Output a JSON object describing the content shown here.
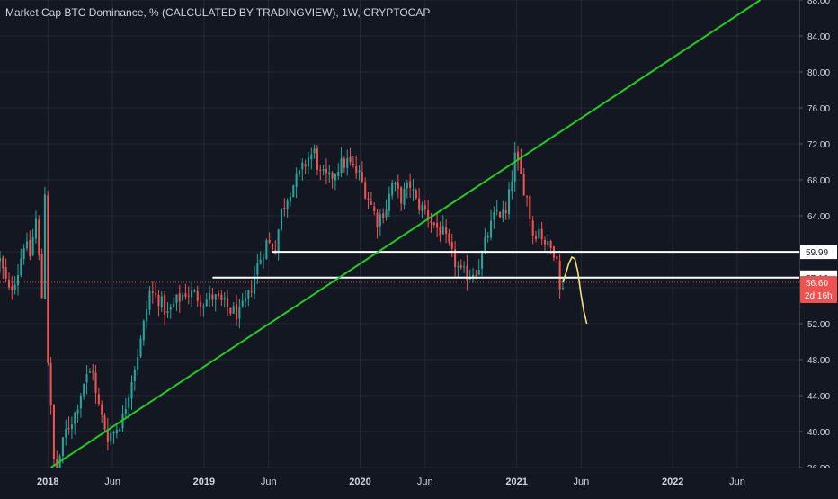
{
  "chart_data": {
    "type": "candlestick",
    "title": "Market Cap BTC Dominance, % (CALCULATED BY TRADINGVIEW), 1W, CRYPTOCAP",
    "xlabel": "",
    "ylabel": "",
    "x_range": [
      "2017-09-11",
      "2022-10-24"
    ],
    "ylim": [
      36,
      88
    ],
    "grid": true,
    "y_ticks": [
      "36.00",
      "40.00",
      "44.00",
      "48.00",
      "52.00",
      "56.00",
      "60.00",
      "64.00",
      "68.00",
      "72.00",
      "76.00",
      "80.00",
      "84.00",
      "88.00"
    ],
    "y_tick_values": [
      36,
      40,
      44,
      48,
      52,
      56,
      60,
      64,
      68,
      72,
      76,
      80,
      84,
      88
    ],
    "x_ticks": [
      {
        "label": "2018",
        "date": "2018-01-01"
      },
      {
        "label": "Jun",
        "date": "2018-06-01"
      },
      {
        "label": "2019",
        "date": "2019-01-01"
      },
      {
        "label": "Jun",
        "date": "2019-06-01"
      },
      {
        "label": "2020",
        "date": "2020-01-01"
      },
      {
        "label": "Jun",
        "date": "2020-06-01"
      },
      {
        "label": "2021",
        "date": "2021-01-01"
      },
      {
        "label": "Jun",
        "date": "2021-06-01"
      },
      {
        "label": "2022",
        "date": "2022-01-01"
      },
      {
        "label": "Jun",
        "date": "2022-06-01"
      }
    ],
    "price_path": [
      [
        "2017-09-11",
        59.0
      ],
      [
        "2017-10-02",
        55.5
      ],
      [
        "2017-10-23",
        57.8
      ],
      [
        "2017-11-06",
        61.0
      ],
      [
        "2017-11-20",
        59.6
      ],
      [
        "2017-12-04",
        63.5
      ],
      [
        "2017-12-18",
        55.0
      ],
      [
        "2017-12-25",
        66.8
      ],
      [
        "2018-01-01",
        48.0
      ],
      [
        "2018-01-15",
        36.8
      ],
      [
        "2018-01-22",
        35.9
      ],
      [
        "2018-02-12",
        40.0
      ],
      [
        "2018-03-05",
        42.0
      ],
      [
        "2018-03-26",
        45.5
      ],
      [
        "2018-04-16",
        47.0
      ],
      [
        "2018-04-23",
        44.0
      ],
      [
        "2018-05-07",
        41.5
      ],
      [
        "2018-05-21",
        39.5
      ],
      [
        "2018-06-04",
        40.0
      ],
      [
        "2018-06-25",
        41.5
      ],
      [
        "2018-07-16",
        46.0
      ],
      [
        "2018-08-06",
        50.0
      ],
      [
        "2018-08-27",
        55.5
      ],
      [
        "2018-09-17",
        54.8
      ],
      [
        "2018-10-08",
        53.0
      ],
      [
        "2018-10-29",
        54.5
      ],
      [
        "2018-11-19",
        55.5
      ],
      [
        "2018-12-10",
        55.2
      ],
      [
        "2018-12-31",
        54.5
      ],
      [
        "2019-01-21",
        55.0
      ],
      [
        "2019-02-11",
        54.3
      ],
      [
        "2019-03-04",
        53.5
      ],
      [
        "2019-03-25",
        53.0
      ],
      [
        "2019-04-15",
        55.0
      ],
      [
        "2019-05-06",
        58.5
      ],
      [
        "2019-05-27",
        61.0
      ],
      [
        "2019-06-17",
        60.5
      ],
      [
        "2019-07-01",
        64.5
      ],
      [
        "2019-07-22",
        67.0
      ],
      [
        "2019-08-12",
        68.5
      ],
      [
        "2019-09-02",
        70.5
      ],
      [
        "2019-09-16",
        71.0
      ],
      [
        "2019-09-30",
        68.5
      ],
      [
        "2019-10-21",
        68.0
      ],
      [
        "2019-11-11",
        69.5
      ],
      [
        "2019-12-02",
        70.0
      ],
      [
        "2019-12-30",
        68.5
      ],
      [
        "2020-01-20",
        66.0
      ],
      [
        "2020-02-10",
        63.5
      ],
      [
        "2020-03-02",
        65.0
      ],
      [
        "2020-03-16",
        67.5
      ],
      [
        "2020-04-06",
        66.0
      ],
      [
        "2020-04-27",
        67.5
      ],
      [
        "2020-05-11",
        65.5
      ],
      [
        "2020-06-01",
        64.5
      ],
      [
        "2020-06-22",
        63.0
      ],
      [
        "2020-07-13",
        62.0
      ],
      [
        "2020-08-03",
        59.5
      ],
      [
        "2020-08-24",
        57.5
      ],
      [
        "2020-09-14",
        57.5
      ],
      [
        "2020-10-05",
        58.5
      ],
      [
        "2020-10-26",
        62.0
      ],
      [
        "2020-11-16",
        64.5
      ],
      [
        "2020-12-07",
        64.0
      ],
      [
        "2020-12-28",
        70.5
      ],
      [
        "2021-01-04",
        69.5
      ],
      [
        "2021-01-25",
        66.0
      ],
      [
        "2021-02-08",
        62.0
      ],
      [
        "2021-02-22",
        62.5
      ],
      [
        "2021-03-15",
        60.5
      ],
      [
        "2021-04-05",
        60.0
      ],
      [
        "2021-04-12",
        55.5
      ],
      [
        "2021-04-19",
        56.6
      ]
    ],
    "current_value": "56.60",
    "countdown": "2d 16h",
    "levels": [
      {
        "value": 59.99,
        "label": "59.99",
        "from": "2019-06-10"
      },
      {
        "value": 57.12,
        "label": "57.12",
        "from": "2019-01-21"
      }
    ],
    "trendline": {
      "from": [
        "2018-01-08",
        36.0
      ],
      "to": [
        "2022-07-25",
        88.0
      ]
    },
    "projection": [
      [
        "2021-04-19",
        56.6
      ],
      [
        "2021-04-26",
        57.6
      ],
      [
        "2021-05-03",
        58.7
      ],
      [
        "2021-05-10",
        59.4
      ],
      [
        "2021-05-17",
        59.2
      ],
      [
        "2021-05-24",
        57.8
      ],
      [
        "2021-05-31",
        55.4
      ],
      [
        "2021-06-07",
        53.4
      ],
      [
        "2021-06-14",
        52.0
      ]
    ],
    "colors": {
      "background": "#131722",
      "grid": "#242835",
      "axis_text": "#d1d4dc",
      "up": "#26a69a",
      "down": "#ef5350",
      "trendline": "#22cc22",
      "level": "#ffffff",
      "projection": "#f2e27a",
      "price_label": "#ef5350"
    }
  }
}
